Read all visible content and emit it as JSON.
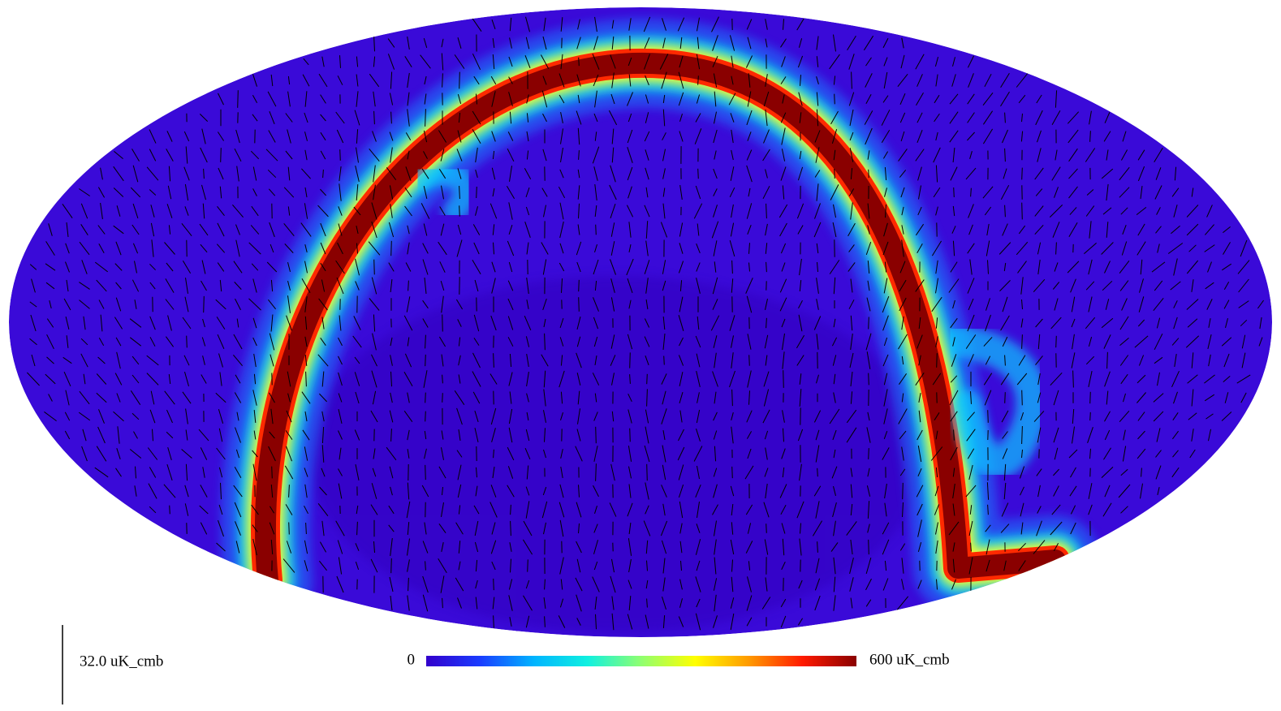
{
  "colorbar": {
    "ticks": [
      0,
      {
        "value": 600,
        "label": "600 uK_cmb"
      }
    ],
    "colors": [
      "#3300cc",
      "#1a3cff",
      "#00b4ff",
      "#10f0e0",
      "#90ff70",
      "#ffff00",
      "#ff9a00",
      "#ff1a00",
      "#8a0000"
    ]
  },
  "vector_scale": {
    "value": 32,
    "label": "32.0 uK_cmb"
  }
}
